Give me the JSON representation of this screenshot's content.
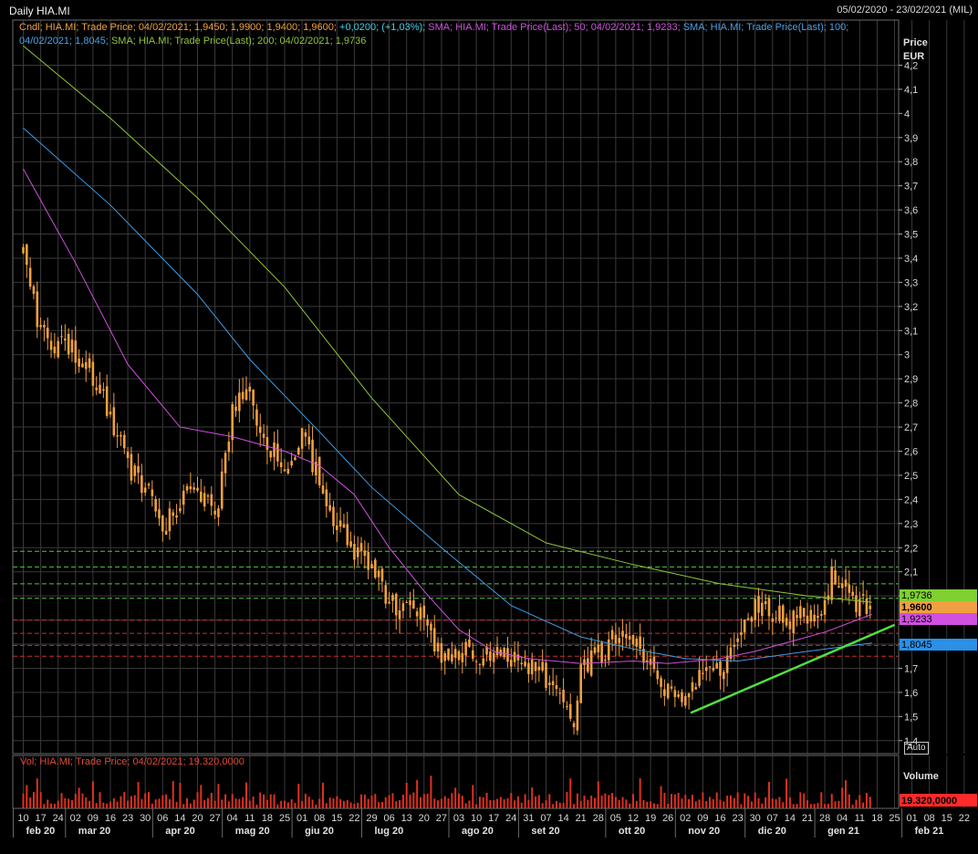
{
  "header": {
    "title": "Daily HIA.MI",
    "range": "05/02/2020 - 23/02/2021 (MIL)"
  },
  "legend": {
    "cndl": "Cndl; HIA.MI; Trade Price; 04/02/2021; 1,9450; 1,9900; 1,9400; 1,9600;",
    "change": "+0,0200; (+1,03%);",
    "sma50": "SMA; HIA.MI; Trade Price(Last); 50; 04/02/2021; 1,9233;",
    "sma100_a": "SMA; HIA.MI; Trade Price(Last); 100;",
    "sma100_b": "04/02/2021; 1,8045;",
    "sma200": "SMA; HIA.MI; Trade Price(Last); 200; 04/02/2021; 1,9736"
  },
  "volume_legend": "Vol; HIA.MI; Trade Price; 04/02/2021; 19.320,0000",
  "price_axis": {
    "title_line1": "Price",
    "title_line2": "EUR",
    "auto_label": "Auto"
  },
  "volume_axis": {
    "title": "Volume"
  },
  "price_tags": [
    {
      "label": "1,9736",
      "value": 1.9736,
      "bg": "#7fd030",
      "fg": "#000000"
    },
    {
      "label": "1,9600",
      "value": 1.96,
      "bg": "#f0a040",
      "fg": "#000000"
    },
    {
      "label": "1,9233",
      "value": 1.9233,
      "bg": "#d050e0",
      "fg": "#000000"
    },
    {
      "label": "1,8045",
      "value": 1.8045,
      "bg": "#2a90e8",
      "fg": "#000000"
    }
  ],
  "volume_tag": {
    "label": "19.320,0000",
    "bg": "#ff2a2a",
    "fg": "#000000"
  },
  "colors": {
    "background": "#000000",
    "grid": "#3a3a3a",
    "candle": "#f0a040",
    "volume": "#e0301e",
    "sma50": "#d050e0",
    "sma100": "#3a9ee8",
    "sma200": "#8ec63a",
    "resistance": "#50c840",
    "support": "#c83030",
    "trendline": "#50e040"
  },
  "chart_data": {
    "type": "candlestick",
    "title": "Daily HIA.MI",
    "ylabel": "Price EUR",
    "ylim": [
      1.35,
      4.3
    ],
    "y_ticks": [
      {
        "v": 1.4,
        "label": "1,4"
      },
      {
        "v": 1.5,
        "label": "1,5"
      },
      {
        "v": 1.6,
        "label": "1,6"
      },
      {
        "v": 1.7,
        "label": "1,7"
      },
      {
        "v": 1.8,
        "label": "1,8"
      },
      {
        "v": 1.9,
        "label": "1,9"
      },
      {
        "v": 2.0,
        "label": "2"
      },
      {
        "v": 2.1,
        "label": "2,1"
      },
      {
        "v": 2.2,
        "label": "2,2"
      },
      {
        "v": 2.3,
        "label": "2,3"
      },
      {
        "v": 2.4,
        "label": "2,4"
      },
      {
        "v": 2.5,
        "label": "2,5"
      },
      {
        "v": 2.6,
        "label": "2,6"
      },
      {
        "v": 2.7,
        "label": "2,7"
      },
      {
        "v": 2.8,
        "label": "2,8"
      },
      {
        "v": 2.9,
        "label": "2,9"
      },
      {
        "v": 3.0,
        "label": "3"
      },
      {
        "v": 3.1,
        "label": "3,1"
      },
      {
        "v": 3.2,
        "label": "3,2"
      },
      {
        "v": 3.3,
        "label": "3,3"
      },
      {
        "v": 3.4,
        "label": "3,4"
      },
      {
        "v": 3.5,
        "label": "3,5"
      },
      {
        "v": 3.6,
        "label": "3,6"
      },
      {
        "v": 3.7,
        "label": "3,7"
      },
      {
        "v": 3.8,
        "label": "3,8"
      },
      {
        "v": 3.9,
        "label": "3,9"
      },
      {
        "v": 4.0,
        "label": "4"
      },
      {
        "v": 4.1,
        "label": "4,1"
      },
      {
        "v": 4.2,
        "label": "4,2"
      }
    ],
    "x_day_labels": [
      "10",
      "17",
      "24",
      "02",
      "09",
      "16",
      "23",
      "30",
      "06",
      "14",
      "20",
      "27",
      "04",
      "11",
      "18",
      "25",
      "01",
      "08",
      "15",
      "22",
      "29",
      "06",
      "13",
      "20",
      "27",
      "03",
      "10",
      "17",
      "24",
      "31",
      "07",
      "14",
      "21",
      "28",
      "05",
      "12",
      "19",
      "26",
      "02",
      "09",
      "16",
      "23",
      "30",
      "07",
      "14",
      "21",
      "28",
      "04",
      "11",
      "18",
      "25",
      "01",
      "08",
      "15",
      "22"
    ],
    "x_month_labels": [
      {
        "label": "feb 20",
        "at_week": 0
      },
      {
        "label": "mar 20",
        "at_week": 3
      },
      {
        "label": "apr 20",
        "at_week": 8
      },
      {
        "label": "mag 20",
        "at_week": 12
      },
      {
        "label": "giu 20",
        "at_week": 16
      },
      {
        "label": "lug 20",
        "at_week": 20
      },
      {
        "label": "ago 20",
        "at_week": 25
      },
      {
        "label": "set 20",
        "at_week": 29
      },
      {
        "label": "ott 20",
        "at_week": 34
      },
      {
        "label": "nov 20",
        "at_week": 38
      },
      {
        "label": "dic 20",
        "at_week": 42
      },
      {
        "label": "gen 21",
        "at_week": 46
      },
      {
        "label": "feb 21",
        "at_week": 51
      }
    ],
    "close_keypoints": [
      [
        0,
        3.42
      ],
      [
        1,
        3.1
      ],
      [
        3,
        3.0
      ],
      [
        4,
        2.92
      ],
      [
        5,
        2.75
      ],
      [
        6,
        2.55
      ],
      [
        7,
        2.45
      ],
      [
        8,
        2.3
      ],
      [
        9,
        2.38
      ],
      [
        10,
        2.48
      ],
      [
        11,
        2.3
      ],
      [
        12,
        2.75
      ],
      [
        13,
        2.85
      ],
      [
        14,
        2.62
      ],
      [
        15,
        2.55
      ],
      [
        16,
        2.65
      ],
      [
        17,
        2.5
      ],
      [
        18,
        2.28
      ],
      [
        19,
        2.2
      ],
      [
        20,
        2.12
      ],
      [
        21,
        1.97
      ],
      [
        22,
        1.95
      ],
      [
        23,
        1.9
      ],
      [
        24,
        1.77
      ],
      [
        25,
        1.77
      ],
      [
        26,
        1.75
      ],
      [
        28,
        1.73
      ],
      [
        29,
        1.73
      ],
      [
        30,
        1.66
      ],
      [
        31,
        1.6
      ],
      [
        31.5,
        1.46
      ],
      [
        32,
        1.7
      ],
      [
        33,
        1.76
      ],
      [
        34,
        1.82
      ],
      [
        35,
        1.8
      ],
      [
        36,
        1.7
      ],
      [
        37,
        1.62
      ],
      [
        38,
        1.58
      ],
      [
        39,
        1.66
      ],
      [
        40,
        1.7
      ],
      [
        41,
        1.82
      ],
      [
        42,
        1.94
      ],
      [
        43,
        1.94
      ],
      [
        44,
        1.88
      ],
      [
        45,
        1.93
      ],
      [
        46,
        1.93
      ],
      [
        46.5,
        2.1
      ],
      [
        47,
        2.05
      ],
      [
        48,
        1.95
      ],
      [
        48.7,
        1.96
      ]
    ],
    "sma200": [
      [
        0,
        4.28
      ],
      [
        5,
        3.98
      ],
      [
        10,
        3.65
      ],
      [
        15,
        3.28
      ],
      [
        20,
        2.82
      ],
      [
        25,
        2.42
      ],
      [
        30,
        2.22
      ],
      [
        35,
        2.13
      ],
      [
        40,
        2.05
      ],
      [
        45,
        2.0
      ],
      [
        48.7,
        1.9736
      ]
    ],
    "sma100": [
      [
        0,
        3.94
      ],
      [
        5,
        3.62
      ],
      [
        10,
        3.25
      ],
      [
        13,
        2.98
      ],
      [
        17,
        2.68
      ],
      [
        20,
        2.45
      ],
      [
        24,
        2.2
      ],
      [
        28,
        1.96
      ],
      [
        32,
        1.83
      ],
      [
        35,
        1.78
      ],
      [
        38,
        1.74
      ],
      [
        41,
        1.73
      ],
      [
        45,
        1.77
      ],
      [
        48.7,
        1.8045
      ]
    ],
    "sma50": [
      [
        0,
        3.77
      ],
      [
        3,
        3.38
      ],
      [
        6,
        2.96
      ],
      [
        9,
        2.7
      ],
      [
        12,
        2.66
      ],
      [
        15,
        2.6
      ],
      [
        17,
        2.54
      ],
      [
        19,
        2.42
      ],
      [
        21,
        2.2
      ],
      [
        23,
        2.02
      ],
      [
        25,
        1.86
      ],
      [
        27,
        1.77
      ],
      [
        29,
        1.74
      ],
      [
        32,
        1.72
      ],
      [
        35,
        1.73
      ],
      [
        37,
        1.72
      ],
      [
        40,
        1.74
      ],
      [
        42,
        1.77
      ],
      [
        44,
        1.81
      ],
      [
        46,
        1.85
      ],
      [
        48.7,
        1.9233
      ]
    ],
    "resistance_levels": [
      2.185,
      2.12,
      2.05,
      1.99
    ],
    "support_levels": [
      1.9,
      1.845,
      1.795,
      1.75
    ],
    "trendline": [
      [
        38.3,
        1.515
      ],
      [
        50,
        1.88
      ]
    ],
    "last": {
      "open": 1.945,
      "high": 1.99,
      "low": 1.94,
      "close": 1.96,
      "volume": 19320
    }
  }
}
